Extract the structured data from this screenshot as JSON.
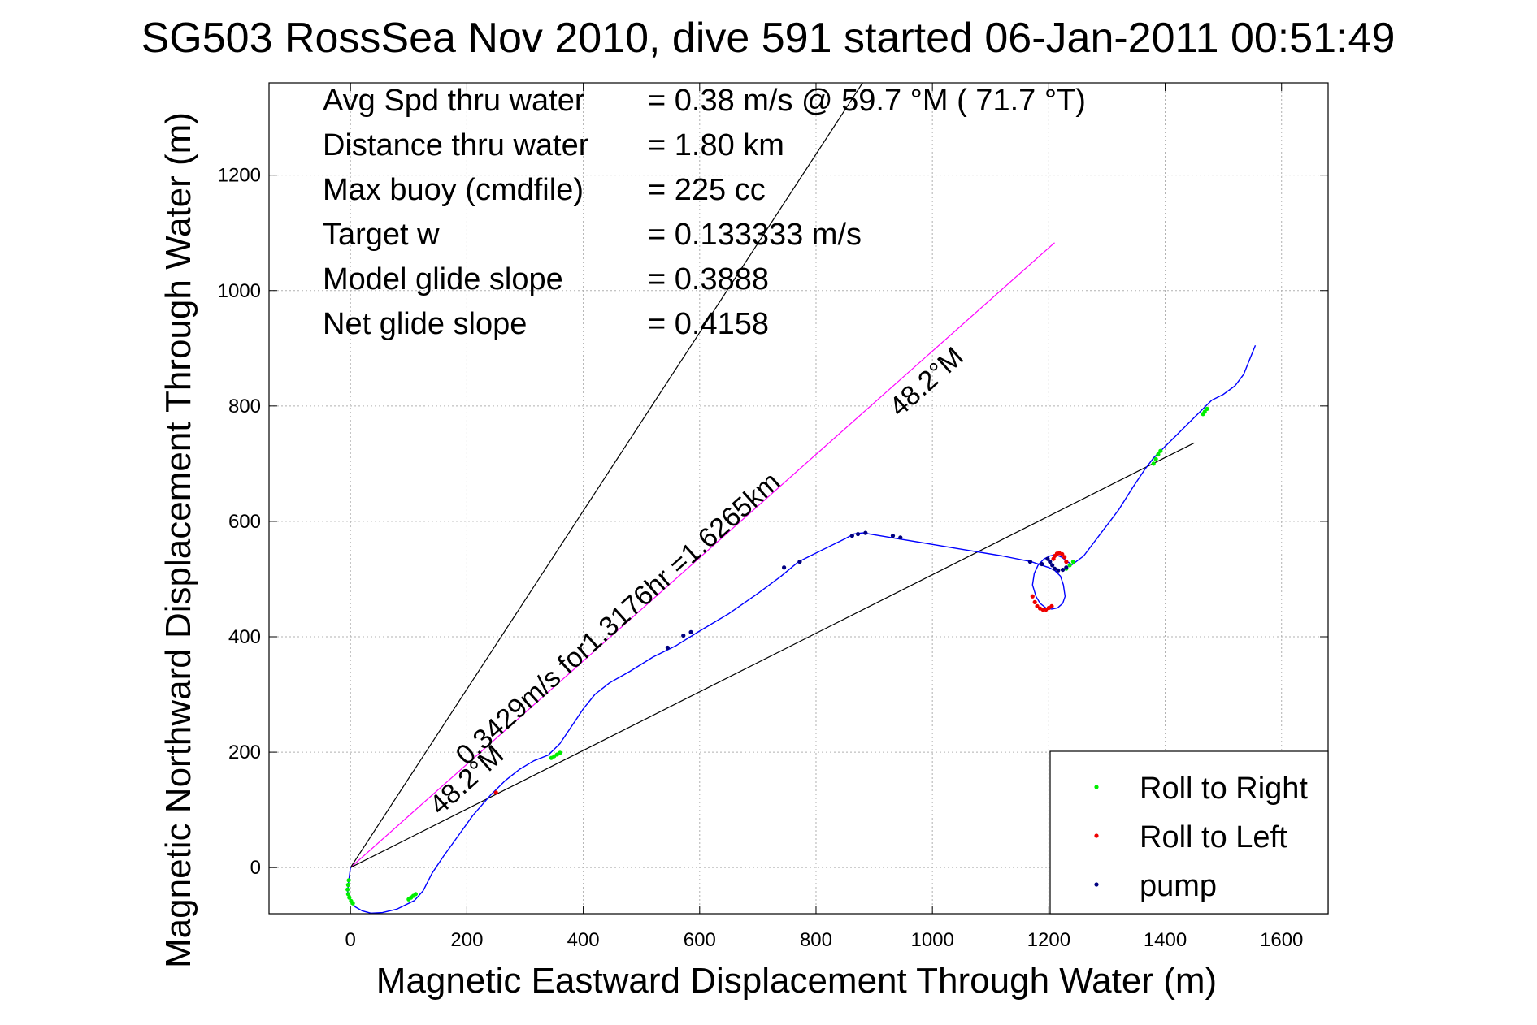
{
  "chart_data": {
    "type": "scatter",
    "title": "SG503 RossSea Nov 2010, dive 591 started 06-Jan-2011 00:51:49",
    "xlabel": "Magnetic Eastward Displacement Through Water (m)",
    "ylabel": "Magnetic Northward Displacement Through Water (m)",
    "xlim": [
      -140,
      1680
    ],
    "ylim": [
      -80,
      1360
    ],
    "xticks": [
      0,
      200,
      400,
      600,
      800,
      1000,
      1200,
      1400,
      1600
    ],
    "yticks": [
      0,
      200,
      400,
      600,
      800,
      1000,
      1200
    ],
    "grid": true,
    "legend_position": "bottom-right",
    "info_lines": [
      {
        "label": "Avg Spd thru water",
        "value": "=  0.38 m/s @  59.7 °M ( 71.7 °T)"
      },
      {
        "label": "Distance thru water",
        "value": "=  1.80 km"
      },
      {
        "label": "Max buoy (cmdfile)",
        "value": "= 225 cc"
      },
      {
        "label": "Target w",
        "value": "= 0.133333 m/s"
      },
      {
        "label": "Model glide slope",
        "value": "= 0.3888"
      },
      {
        "label": "Net glide slope",
        "value": "= 0.4158"
      }
    ],
    "annotations": [
      {
        "text": "48.2°M",
        "x": 1000,
        "y": 830,
        "angle": 41.8
      },
      {
        "text": "0.3429m/s for1.3176hr =1.6265km",
        "x": 470,
        "y": 420,
        "angle": 41.8
      },
      {
        "text": "48.2°M",
        "x": 210,
        "y": 140,
        "angle": 41.8
      }
    ],
    "series": [
      {
        "name": "track",
        "color": "#0000ff",
        "style": "line",
        "x": [
          0,
          -2,
          -4,
          -5,
          0,
          8,
          20,
          35,
          55,
          80,
          110,
          125,
          140,
          160,
          185,
          210,
          240,
          265,
          290,
          315,
          340,
          360,
          380,
          400,
          420,
          445,
          480,
          520,
          560,
          600,
          650,
          700,
          740,
          770,
          810,
          850,
          865,
          880,
          940,
          1000,
          1060,
          1120,
          1170,
          1200,
          1210,
          1220,
          1225,
          1228,
          1224,
          1215,
          1205,
          1195,
          1185,
          1178,
          1172,
          1175,
          1182,
          1192,
          1202,
          1212,
          1222,
          1232,
          1240,
          1260,
          1290,
          1320,
          1345,
          1365,
          1380,
          1390,
          1400,
          1420,
          1440,
          1460,
          1470,
          1480,
          1500,
          1520,
          1535,
          1545,
          1555
        ],
        "y": [
          0,
          -15,
          -30,
          -45,
          -58,
          -68,
          -75,
          -79,
          -78,
          -72,
          -57,
          -40,
          -10,
          20,
          55,
          90,
          125,
          150,
          170,
          185,
          195,
          215,
          245,
          275,
          300,
          320,
          340,
          365,
          385,
          410,
          440,
          475,
          505,
          530,
          550,
          570,
          578,
          580,
          570,
          560,
          550,
          540,
          530,
          520,
          515,
          505,
          490,
          470,
          458,
          450,
          448,
          450,
          458,
          470,
          490,
          510,
          525,
          535,
          540,
          542,
          538,
          530,
          525,
          540,
          580,
          620,
          660,
          690,
          710,
          720,
          730,
          750,
          770,
          790,
          800,
          810,
          820,
          835,
          855,
          880,
          905
        ]
      },
      {
        "name": "Roll to Right",
        "color": "#00ee00",
        "style": "points",
        "x": [
          -3,
          -4,
          -5,
          -4,
          -2,
          1,
          4,
          100,
          104,
          108,
          112,
          345,
          350,
          355,
          360,
          1230,
          1236,
          1242,
          1380,
          1384,
          1388,
          1392,
          1465,
          1468,
          1472
        ],
        "y": [
          -22,
          -30,
          -38,
          -46,
          -52,
          -58,
          -62,
          -55,
          -52,
          -49,
          -46,
          190,
          193,
          196,
          199,
          518,
          524,
          530,
          700,
          708,
          716,
          722,
          786,
          790,
          795
        ]
      },
      {
        "name": "Roll to Left",
        "color": "#ee0000",
        "style": "points",
        "x": [
          250,
          1172,
          1176,
          1180,
          1185,
          1190,
          1195,
          1200,
          1205,
          1208,
          1210,
          1214,
          1218,
          1223,
          1227,
          1230
        ],
        "y": [
          130,
          470,
          460,
          453,
          449,
          447,
          447,
          450,
          453,
          535,
          540,
          544,
          545,
          543,
          538,
          530
        ]
      },
      {
        "name": "pump",
        "color": "#000080",
        "style": "points",
        "x": [
          545,
          572,
          585,
          745,
          772,
          862,
          872,
          885,
          932,
          945,
          1168,
          1188,
          1198,
          1202,
          1206,
          1210,
          1216,
          1224,
          1230
        ],
        "y": [
          381,
          402,
          408,
          520,
          530,
          575,
          578,
          580,
          575,
          572,
          530,
          526,
          535,
          530,
          524,
          518,
          515,
          516,
          520
        ]
      }
    ],
    "reference_lines": [
      {
        "name": "model line",
        "color": "#ff00ff",
        "x": [
          0,
          1210
        ],
        "y": [
          0,
          1083
        ]
      },
      {
        "name": "left bound",
        "color": "#000000",
        "x": [
          0,
          880
        ],
        "y": [
          0,
          1360
        ]
      },
      {
        "name": "right bound",
        "color": "#000000",
        "x": [
          0,
          1450
        ],
        "y": [
          0,
          736
        ]
      }
    ]
  }
}
